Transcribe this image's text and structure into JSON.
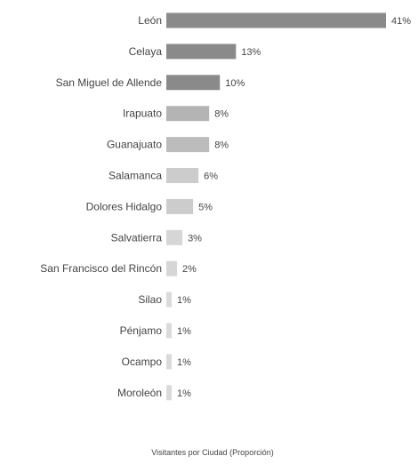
{
  "chart_data": {
    "type": "bar",
    "orientation": "horizontal",
    "categories": [
      "León",
      "Celaya",
      "San Miguel de Allende",
      "Irapuato",
      "Guanajuato",
      "Salamanca",
      "Dolores Hidalgo",
      "Salvatierra",
      "San Francisco del Rincón",
      "Silao",
      "Pénjamo",
      "Ocampo",
      "Moroleón"
    ],
    "values": [
      41,
      13,
      10,
      8,
      8,
      6,
      5,
      3,
      2,
      1,
      1,
      1,
      1
    ],
    "value_labels": [
      "41%",
      "13%",
      "10%",
      "8%",
      "8%",
      "6%",
      "5%",
      "3%",
      "2%",
      "1%",
      "1%",
      "1%",
      "1%"
    ],
    "bar_colors": [
      "#8a8a8a",
      "#8a8a8a",
      "#8a8a8a",
      "#b4b4b4",
      "#bcbcbc",
      "#cccccc",
      "#cccccc",
      "#d6d6d6",
      "#d6d6d6",
      "#dadada",
      "#dadada",
      "#dadada",
      "#dadada"
    ],
    "title": "",
    "xlabel": "Visitantes por Ciudad (Proporción)",
    "ylabel": "",
    "xlim": [
      0,
      41
    ],
    "grid": false,
    "legend": "none"
  }
}
